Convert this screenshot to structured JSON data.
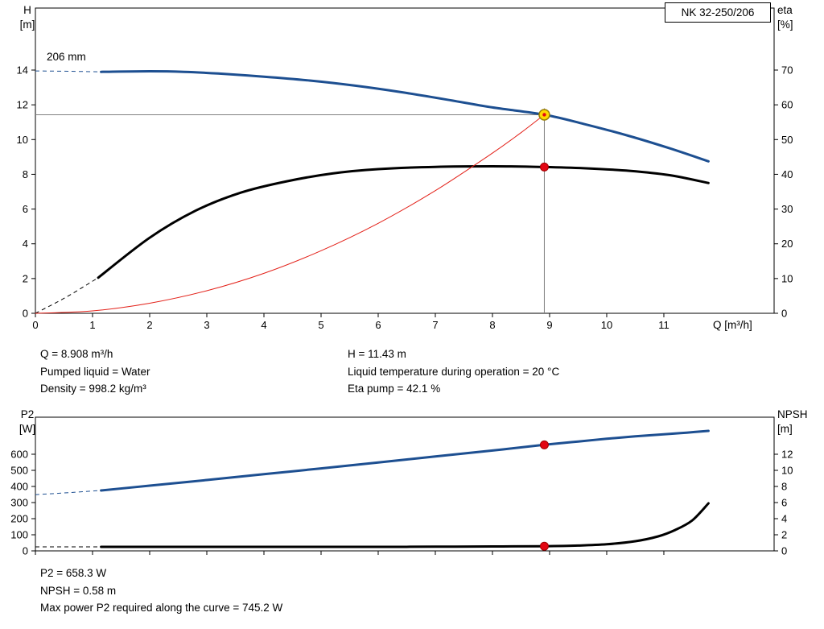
{
  "model_label": "NK 32-250/206",
  "colors": {
    "curve_blue": "#1d4f91",
    "curve_black": "#000000",
    "system_red": "#e32119",
    "crosshair_gray": "#808080",
    "duty_fill": "#ffd800",
    "duty_stroke": "#9a7d00",
    "dot_red": "#e30613",
    "dot_red_edge": "#a00000"
  },
  "operating_point": {
    "q": 8.908,
    "h": 11.43,
    "eta": 42.1,
    "p2": 658.3,
    "npsh": 0.58
  },
  "results_top": {
    "col1": [
      "Q = 8.908 m³/h",
      "Pumped liquid = Water",
      "Density = 998.2 kg/m³"
    ],
    "col2": [
      "H = 11.43 m",
      "Liquid temperature during operation = 20 °C",
      "Eta pump = 42.1 %"
    ]
  },
  "results_bottom": [
    "P2 = 658.3 W",
    "NPSH = 0.58 m",
    "Max power P2 required along the curve = 745.2 W"
  ],
  "chart_data": [
    {
      "type": "line",
      "title": "NK 32-250/206",
      "x_axis": {
        "label": "Q [m³/h]",
        "min": 0,
        "max": 12.93,
        "ticks": [
          0,
          1,
          2,
          3,
          4,
          5,
          6,
          7,
          8,
          9,
          10,
          11
        ]
      },
      "left_axis": {
        "label": "H",
        "unit": "[m]",
        "min": 0,
        "max": 17.57,
        "ticks": [
          0,
          2,
          4,
          6,
          8,
          10,
          12,
          14
        ]
      },
      "right_axis": {
        "label": "eta",
        "unit": "[%]",
        "min": 0,
        "max": 87.85,
        "ticks": [
          0,
          10,
          20,
          30,
          40,
          50,
          60,
          70
        ]
      },
      "annotations": {
        "impeller_label": "206 mm"
      },
      "crosshair": {
        "q": 8.908,
        "h": 11.43
      },
      "series": [
        {
          "name": "head-curve-206mm",
          "axis": "left",
          "color": "curve_blue",
          "width": 3,
          "dash_lead": [
            [
              0,
              13.95
            ],
            [
              0.6,
              13.93
            ],
            [
              1.15,
              13.9
            ]
          ],
          "points": [
            [
              1.15,
              13.9
            ],
            [
              2,
              13.93
            ],
            [
              2.6,
              13.9
            ],
            [
              3.2,
              13.8
            ],
            [
              4,
              13.62
            ],
            [
              4.8,
              13.4
            ],
            [
              5.6,
              13.1
            ],
            [
              6.4,
              12.73
            ],
            [
              7.2,
              12.3
            ],
            [
              8,
              11.85
            ],
            [
              8.908,
              11.43
            ],
            [
              9.6,
              10.9
            ],
            [
              10.4,
              10.2
            ],
            [
              11.1,
              9.5
            ],
            [
              11.78,
              8.75
            ]
          ]
        },
        {
          "name": "efficiency-curve",
          "axis": "left",
          "color": "curve_black",
          "width": 3,
          "dash_lead": [
            [
              0,
              0
            ],
            [
              0.55,
              0.95
            ],
            [
              1.1,
              2.05
            ]
          ],
          "points": [
            [
              1.1,
              2.05
            ],
            [
              2,
              4.35
            ],
            [
              2.8,
              5.9
            ],
            [
              3.6,
              6.95
            ],
            [
              4.4,
              7.6
            ],
            [
              5.2,
              8.05
            ],
            [
              6,
              8.3
            ],
            [
              7,
              8.43
            ],
            [
              8,
              8.46
            ],
            [
              8.908,
              8.42
            ],
            [
              9.6,
              8.35
            ],
            [
              10.4,
              8.2
            ],
            [
              11.1,
              7.95
            ],
            [
              11.78,
              7.5
            ]
          ]
        },
        {
          "name": "system-curve",
          "axis": "left",
          "color": "system_red",
          "width": 1,
          "points": [
            [
              0,
              0
            ],
            [
              1,
              0.14
            ],
            [
              2,
              0.58
            ],
            [
              3,
              1.3
            ],
            [
              4,
              2.3
            ],
            [
              5,
              3.6
            ],
            [
              6,
              5.18
            ],
            [
              7,
              7.06
            ],
            [
              8,
              9.22
            ],
            [
              8.5,
              10.4
            ],
            [
              8.908,
              11.43
            ]
          ]
        }
      ],
      "markers": [
        {
          "type": "duty",
          "q": 8.908,
          "value": 11.43,
          "axis": "left"
        },
        {
          "type": "dot",
          "q": 8.908,
          "value": 8.42,
          "axis": "left"
        }
      ]
    },
    {
      "type": "line",
      "title": "",
      "x_axis": {
        "label": "",
        "min": 0,
        "max": 12.93,
        "ticks": [
          0,
          1,
          2,
          3,
          4,
          5,
          6,
          7,
          8,
          9,
          10,
          11
        ]
      },
      "left_axis": {
        "label": "P2",
        "unit": "[W]",
        "min": 0,
        "max": 830,
        "ticks": [
          0,
          100,
          200,
          300,
          400,
          500,
          600
        ]
      },
      "right_axis": {
        "label": "NPSH",
        "unit": "[m]",
        "min": 0,
        "max": 16.6,
        "ticks": [
          0,
          2,
          4,
          6,
          8,
          10,
          12
        ]
      },
      "series": [
        {
          "name": "p2-curve",
          "axis": "left",
          "color": "curve_blue",
          "width": 3,
          "dash_lead": [
            [
              0,
              349
            ],
            [
              0.6,
              362
            ],
            [
              1.15,
              375
            ]
          ],
          "points": [
            [
              1.15,
              375
            ],
            [
              2,
              405
            ],
            [
              3,
              440
            ],
            [
              4,
              476
            ],
            [
              5,
              512
            ],
            [
              6,
              549
            ],
            [
              7,
              586
            ],
            [
              8,
              623
            ],
            [
              8.908,
              658.3
            ],
            [
              9.5,
              679
            ],
            [
              10,
              696
            ],
            [
              10.5,
              711
            ],
            [
              11,
              724
            ],
            [
              11.4,
              734
            ],
            [
              11.78,
              745.2
            ]
          ]
        },
        {
          "name": "npsh-curve",
          "axis": "right",
          "color": "curve_black",
          "width": 3,
          "dash_lead": [
            [
              0,
              0.5
            ],
            [
              1.15,
              0.5
            ]
          ],
          "points": [
            [
              1.15,
              0.5
            ],
            [
              2,
              0.5
            ],
            [
              3,
              0.5
            ],
            [
              4,
              0.5
            ],
            [
              5,
              0.5
            ],
            [
              6,
              0.5
            ],
            [
              7,
              0.52
            ],
            [
              8,
              0.55
            ],
            [
              8.908,
              0.58
            ],
            [
              9.5,
              0.66
            ],
            [
              10,
              0.82
            ],
            [
              10.5,
              1.2
            ],
            [
              10.9,
              1.8
            ],
            [
              11.2,
              2.6
            ],
            [
              11.5,
              3.8
            ],
            [
              11.78,
              5.9
            ]
          ]
        }
      ],
      "markers": [
        {
          "type": "dot",
          "q": 8.908,
          "value": 658.3,
          "axis": "left"
        },
        {
          "type": "dot",
          "q": 8.908,
          "value": 0.58,
          "axis": "right"
        }
      ]
    }
  ]
}
